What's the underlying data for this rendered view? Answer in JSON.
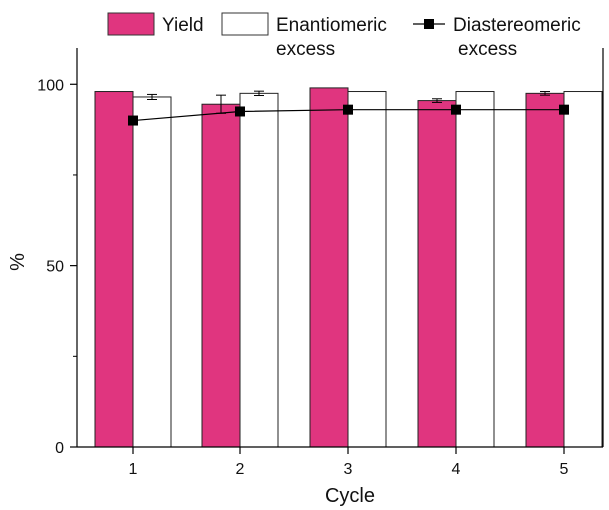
{
  "chart_data": {
    "type": "bar",
    "xlabel": "Cycle",
    "ylabel": "%",
    "ylim": [
      0,
      110
    ],
    "yticks": [
      0,
      50,
      100
    ],
    "categories": [
      "1",
      "2",
      "3",
      "4",
      "5"
    ],
    "series": [
      {
        "name": "Yield",
        "kind": "bar",
        "color": "#e0357f",
        "values": [
          98,
          94.5,
          99,
          95.5,
          97.5
        ],
        "errors": [
          0,
          2.5,
          0,
          0.5,
          0.5
        ]
      },
      {
        "name": "Enantiomeric excess",
        "kind": "bar",
        "color": "#ffffff",
        "values": [
          96.5,
          97.5,
          98,
          98,
          98
        ],
        "errors": [
          0.7,
          0.6,
          0,
          0,
          0
        ]
      },
      {
        "name": "Diastereomeric excess",
        "kind": "line",
        "color": "#000000",
        "values": [
          90,
          92.5,
          93,
          93,
          93
        ]
      }
    ],
    "legend": {
      "position": "top",
      "yield_label": "Yield",
      "ee_label_line1": "Enantiomeric",
      "ee_label_line2": "excess",
      "de_label_line1": "Diastereomeric",
      "de_label_line2": "excess"
    }
  }
}
